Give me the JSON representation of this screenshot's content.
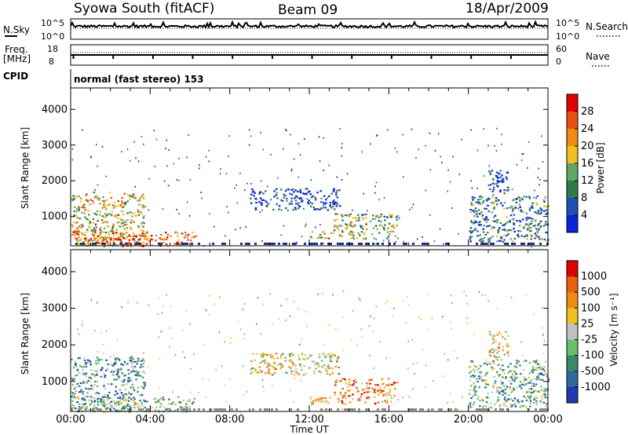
{
  "header": {
    "station": "Syowa South (fitACF)",
    "beam": "Beam 09",
    "date": "18/Apr/2009"
  },
  "panels": {
    "nsky_label": "N.Sky",
    "nsky_ticks": [
      "10^5",
      "10^0"
    ],
    "nsearch_label": "N.Search",
    "nsearch_ticks": [
      "10^5",
      "10^0"
    ],
    "freq_label_1": "Freq.",
    "freq_label_2": "[MHz]",
    "freq_ticks": [
      "18",
      "8"
    ],
    "nave_label": "Nave",
    "nave_ticks": [
      "60",
      "0"
    ],
    "cpid_label": "CPID",
    "cpid_value": "normal (fast stereo) 153"
  },
  "colors": {
    "power": [
      "#0a24d8",
      "#1f4fb0",
      "#2e7a4a",
      "#5fa868",
      "#f0c020",
      "#f08a10",
      "#e85010",
      "#e00000"
    ],
    "velocity": [
      "#2238b0",
      "#2c6aa0",
      "#3a8a6a",
      "#66c06a",
      "#c0c0c0",
      "#f0c020",
      "#f08a10",
      "#e86010",
      "#e00000"
    ]
  },
  "chart_data": [
    {
      "type": "heatmap",
      "name": "power",
      "xlabel": "Time UT",
      "ylabel": "Slant Range [km]",
      "xticks": [
        "00:00",
        "04:00",
        "08:00",
        "12:00",
        "16:00",
        "20:00",
        "00:00"
      ],
      "xlim_hours": [
        0,
        24
      ],
      "yticks": [
        1000,
        2000,
        3000,
        4000
      ],
      "ylim": [
        180,
        4600
      ],
      "colorbar_label": "Power [dB]",
      "colorbar_ticks": [
        "4",
        "8",
        "12",
        "16",
        "20",
        "24",
        "28"
      ],
      "colorbar_range": [
        0,
        30
      ],
      "echo_regions": [
        {
          "t0": 0.0,
          "t1": 3.7,
          "r0": 200,
          "r1": 1700,
          "level": 0.55
        },
        {
          "t0": 0.0,
          "t1": 6.2,
          "r0": 180,
          "r1": 600,
          "level": 0.75
        },
        {
          "t0": 9.0,
          "t1": 13.5,
          "r0": 1200,
          "r1": 1800,
          "level": 0.15
        },
        {
          "t0": 13.2,
          "t1": 16.4,
          "r0": 600,
          "r1": 1100,
          "level": 0.45
        },
        {
          "t0": 12.0,
          "t1": 16.5,
          "r0": 400,
          "r1": 600,
          "level": 0.5
        },
        {
          "t0": 20.0,
          "t1": 24.0,
          "r0": 300,
          "r1": 1600,
          "level": 0.3
        },
        {
          "t0": 21.0,
          "t1": 22.0,
          "r0": 1600,
          "r1": 2400,
          "level": 0.15
        }
      ]
    },
    {
      "type": "heatmap",
      "name": "velocity",
      "xlabel": "Time UT",
      "ylabel": "Slant Range [km]",
      "xticks": [
        "00:00",
        "04:00",
        "08:00",
        "12:00",
        "16:00",
        "20:00",
        "00:00"
      ],
      "xlim_hours": [
        0,
        24
      ],
      "yticks": [
        1000,
        2000,
        3000,
        4000
      ],
      "ylim": [
        180,
        4600
      ],
      "colorbar_label": "Velocity [m s⁻¹]",
      "colorbar_ticks": [
        "1000",
        "500",
        "100",
        "25",
        "-25",
        "-100",
        "-500",
        "-1000"
      ],
      "colorbar_range": [
        -1000,
        1000
      ],
      "echo_regions": [
        {
          "t0": 0.0,
          "t1": 3.7,
          "r0": 200,
          "r1": 1700,
          "level": 0.3
        },
        {
          "t0": 0.0,
          "t1": 6.2,
          "r0": 180,
          "r1": 600,
          "level": 0.4
        },
        {
          "t0": 9.0,
          "t1": 13.5,
          "r0": 1200,
          "r1": 1800,
          "level": 0.55
        },
        {
          "t0": 13.2,
          "t1": 16.4,
          "r0": 600,
          "r1": 1100,
          "level": 0.75
        },
        {
          "t0": 12.0,
          "t1": 16.5,
          "r0": 400,
          "r1": 600,
          "level": 0.7
        },
        {
          "t0": 20.0,
          "t1": 24.0,
          "r0": 300,
          "r1": 1600,
          "level": 0.35
        },
        {
          "t0": 21.0,
          "t1": 22.0,
          "r0": 1600,
          "r1": 2400,
          "level": 0.6
        }
      ]
    }
  ]
}
